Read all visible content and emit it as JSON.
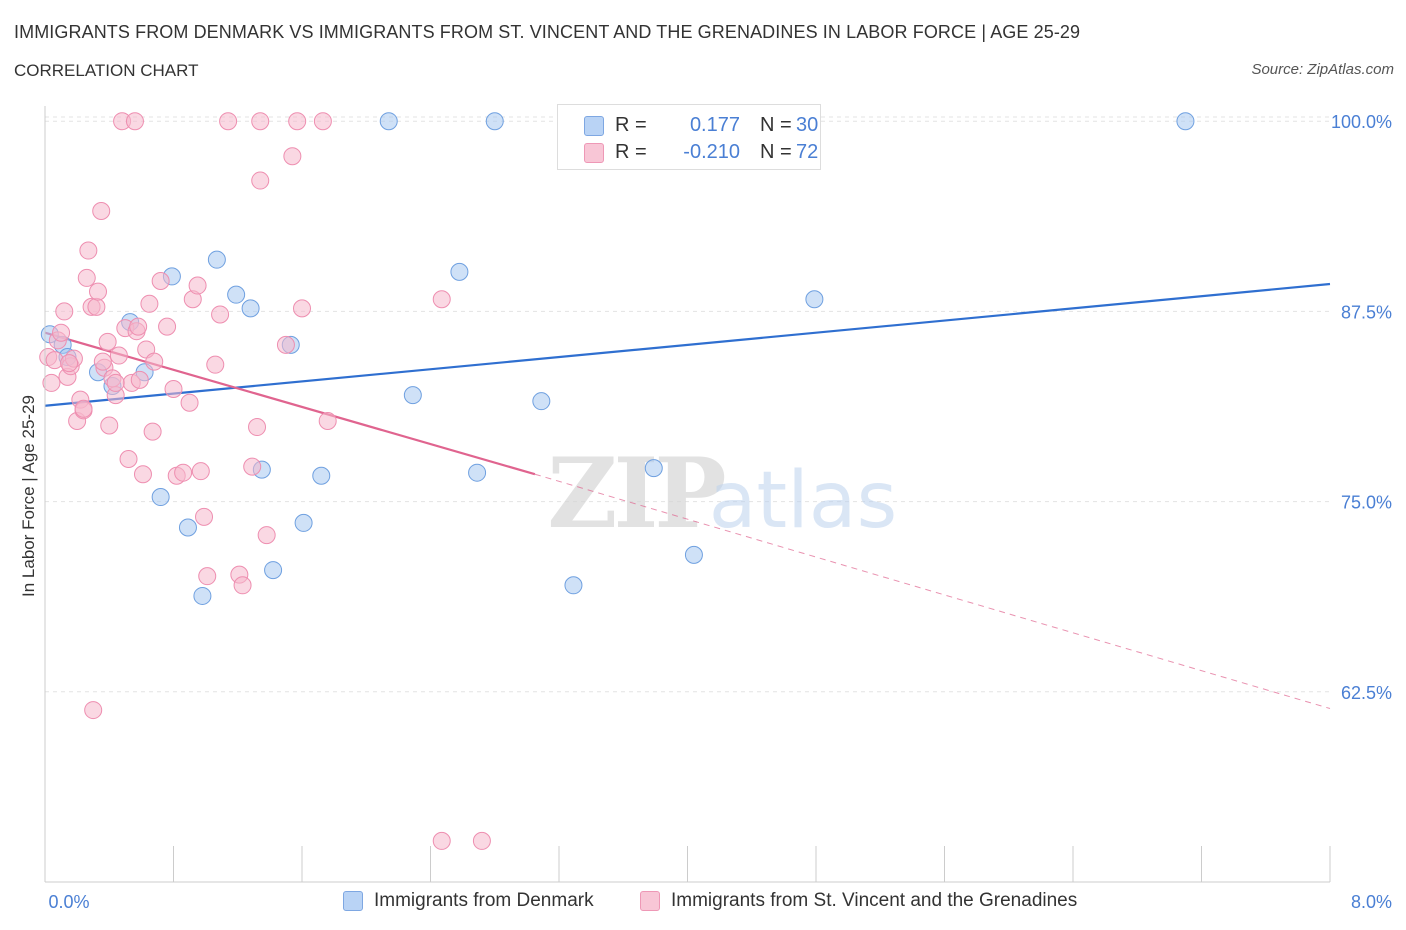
{
  "header": {
    "title": "IMMIGRANTS FROM DENMARK VS IMMIGRANTS FROM ST. VINCENT AND THE GRENADINES IN LABOR FORCE | AGE 25-29",
    "subtitle": "CORRELATION CHART",
    "source": "Source: ZipAtlas.com"
  },
  "legend_box": {
    "rows": [
      {
        "r_label": "R =",
        "r_value": "0.177",
        "n_label": "N =",
        "n_value": "30",
        "color": "#a8c8f0"
      },
      {
        "r_label": "R =",
        "r_value": "-0.210",
        "n_label": "N =",
        "n_value": "72",
        "color": "#f5b8cc"
      }
    ]
  },
  "bottom_legend": {
    "items": [
      {
        "label": "Immigrants from Denmark",
        "color": "#a8c8f0"
      },
      {
        "label": "Immigrants from St. Vincent and the Grenadines",
        "color": "#f5b8cc"
      }
    ]
  },
  "watermark": {
    "zip": "ZIP",
    "atlas": "atlas"
  },
  "chart_data": {
    "type": "scatter",
    "title": "IMMIGRANTS FROM DENMARK VS IMMIGRANTS FROM ST. VINCENT AND THE GRENADINES IN LABOR FORCE | AGE 25-29",
    "subtitle": "CORRELATION CHART",
    "xlabel": "",
    "ylabel": "In Labor Force | Age 25-29",
    "xlim": [
      0.0,
      8.0
    ],
    "ylim": [
      50.0,
      101.0
    ],
    "x_tick_labels": [
      "0.0%",
      "8.0%"
    ],
    "y_ticks": [
      62.5,
      75.0,
      87.5,
      100.0
    ],
    "y_tick_labels": [
      "62.5%",
      "75.0%",
      "87.5%",
      "100.0%"
    ],
    "grid": "horizontal dashed",
    "legend_position": "top-center",
    "series": [
      {
        "name": "Immigrants from Denmark",
        "color": "#6fa0e0",
        "fill": "#a8c8f0",
        "trend": {
          "x": [
            0.0,
            8.0
          ],
          "y": [
            81.3,
            89.3
          ],
          "style": "solid",
          "color": "#2f6fd0"
        },
        "points": [
          {
            "x": 0.03,
            "y": 86.0
          },
          {
            "x": 0.11,
            "y": 85.3
          },
          {
            "x": 0.14,
            "y": 84.5
          },
          {
            "x": 0.33,
            "y": 83.5
          },
          {
            "x": 0.42,
            "y": 82.6
          },
          {
            "x": 0.53,
            "y": 86.8
          },
          {
            "x": 0.62,
            "y": 83.5
          },
          {
            "x": 0.72,
            "y": 75.3
          },
          {
            "x": 0.79,
            "y": 89.8
          },
          {
            "x": 0.89,
            "y": 73.3
          },
          {
            "x": 0.98,
            "y": 68.8
          },
          {
            "x": 1.07,
            "y": 90.9
          },
          {
            "x": 1.19,
            "y": 88.6
          },
          {
            "x": 1.28,
            "y": 87.7
          },
          {
            "x": 1.35,
            "y": 77.1
          },
          {
            "x": 1.42,
            "y": 70.5
          },
          {
            "x": 1.53,
            "y": 85.3
          },
          {
            "x": 1.61,
            "y": 73.6
          },
          {
            "x": 1.72,
            "y": 76.7
          },
          {
            "x": 2.14,
            "y": 100.0
          },
          {
            "x": 2.29,
            "y": 82.0
          },
          {
            "x": 2.58,
            "y": 90.1
          },
          {
            "x": 2.69,
            "y": 76.9
          },
          {
            "x": 2.8,
            "y": 100.0
          },
          {
            "x": 3.09,
            "y": 81.6
          },
          {
            "x": 3.29,
            "y": 69.5
          },
          {
            "x": 3.79,
            "y": 77.2
          },
          {
            "x": 4.04,
            "y": 71.5
          },
          {
            "x": 4.79,
            "y": 88.3
          },
          {
            "x": 7.1,
            "y": 100.0
          }
        ]
      },
      {
        "name": "Immigrants from St. Vincent and the Grenadines",
        "color": "#ee8eb0",
        "fill": "#f5b8cc",
        "trend": {
          "x": [
            0.0,
            3.05
          ],
          "y": [
            86.1,
            76.8
          ],
          "style": "solid",
          "color": "#e0648f",
          "extension": {
            "x": [
              3.05,
              8.0
            ],
            "y": [
              76.8,
              61.4
            ],
            "style": "dashed"
          }
        },
        "points": [
          {
            "x": 0.02,
            "y": 84.5
          },
          {
            "x": 0.04,
            "y": 82.8
          },
          {
            "x": 0.06,
            "y": 84.3
          },
          {
            "x": 0.08,
            "y": 85.6
          },
          {
            "x": 0.1,
            "y": 86.1
          },
          {
            "x": 0.12,
            "y": 87.5
          },
          {
            "x": 0.14,
            "y": 83.2
          },
          {
            "x": 0.16,
            "y": 83.9
          },
          {
            "x": 0.18,
            "y": 84.4
          },
          {
            "x": 0.2,
            "y": 80.3
          },
          {
            "x": 0.22,
            "y": 81.7
          },
          {
            "x": 0.24,
            "y": 81.0
          },
          {
            "x": 0.26,
            "y": 89.7
          },
          {
            "x": 0.27,
            "y": 91.5
          },
          {
            "x": 0.29,
            "y": 87.8
          },
          {
            "x": 0.3,
            "y": 61.3
          },
          {
            "x": 0.32,
            "y": 87.8
          },
          {
            "x": 0.33,
            "y": 88.8
          },
          {
            "x": 0.35,
            "y": 94.1
          },
          {
            "x": 0.37,
            "y": 83.8
          },
          {
            "x": 0.39,
            "y": 85.5
          },
          {
            "x": 0.4,
            "y": 80.0
          },
          {
            "x": 0.42,
            "y": 83.1
          },
          {
            "x": 0.44,
            "y": 82.0
          },
          {
            "x": 0.46,
            "y": 84.6
          },
          {
            "x": 0.48,
            "y": 100.0
          },
          {
            "x": 0.5,
            "y": 86.4
          },
          {
            "x": 0.52,
            "y": 77.8
          },
          {
            "x": 0.54,
            "y": 82.8
          },
          {
            "x": 0.56,
            "y": 100.0
          },
          {
            "x": 0.57,
            "y": 86.2
          },
          {
            "x": 0.59,
            "y": 83.0
          },
          {
            "x": 0.61,
            "y": 76.8
          },
          {
            "x": 0.63,
            "y": 85.0
          },
          {
            "x": 0.65,
            "y": 88.0
          },
          {
            "x": 0.67,
            "y": 79.6
          },
          {
            "x": 0.72,
            "y": 89.5
          },
          {
            "x": 0.76,
            "y": 86.5
          },
          {
            "x": 0.8,
            "y": 82.4
          },
          {
            "x": 0.82,
            "y": 76.7
          },
          {
            "x": 0.9,
            "y": 81.5
          },
          {
            "x": 0.92,
            "y": 88.3
          },
          {
            "x": 0.95,
            "y": 89.2
          },
          {
            "x": 0.97,
            "y": 77.0
          },
          {
            "x": 0.99,
            "y": 74.0
          },
          {
            "x": 1.01,
            "y": 70.1
          },
          {
            "x": 1.06,
            "y": 84.0
          },
          {
            "x": 1.09,
            "y": 87.3
          },
          {
            "x": 1.14,
            "y": 100.0
          },
          {
            "x": 1.21,
            "y": 70.2
          },
          {
            "x": 1.23,
            "y": 69.5
          },
          {
            "x": 1.29,
            "y": 77.3
          },
          {
            "x": 1.32,
            "y": 79.9
          },
          {
            "x": 1.34,
            "y": 96.1
          },
          {
            "x": 1.34,
            "y": 100.0
          },
          {
            "x": 1.38,
            "y": 72.8
          },
          {
            "x": 1.5,
            "y": 85.3
          },
          {
            "x": 1.54,
            "y": 97.7
          },
          {
            "x": 1.57,
            "y": 100.0
          },
          {
            "x": 1.6,
            "y": 87.7
          },
          {
            "x": 1.73,
            "y": 100.0
          },
          {
            "x": 1.76,
            "y": 80.3
          },
          {
            "x": 2.47,
            "y": 52.7
          },
          {
            "x": 2.47,
            "y": 88.3
          },
          {
            "x": 2.72,
            "y": 52.7
          },
          {
            "x": 0.15,
            "y": 84.1
          },
          {
            "x": 0.24,
            "y": 81.1
          },
          {
            "x": 0.36,
            "y": 84.2
          },
          {
            "x": 0.44,
            "y": 82.8
          },
          {
            "x": 0.58,
            "y": 86.5
          },
          {
            "x": 0.68,
            "y": 84.2
          },
          {
            "x": 0.86,
            "y": 76.9
          }
        ]
      }
    ]
  }
}
